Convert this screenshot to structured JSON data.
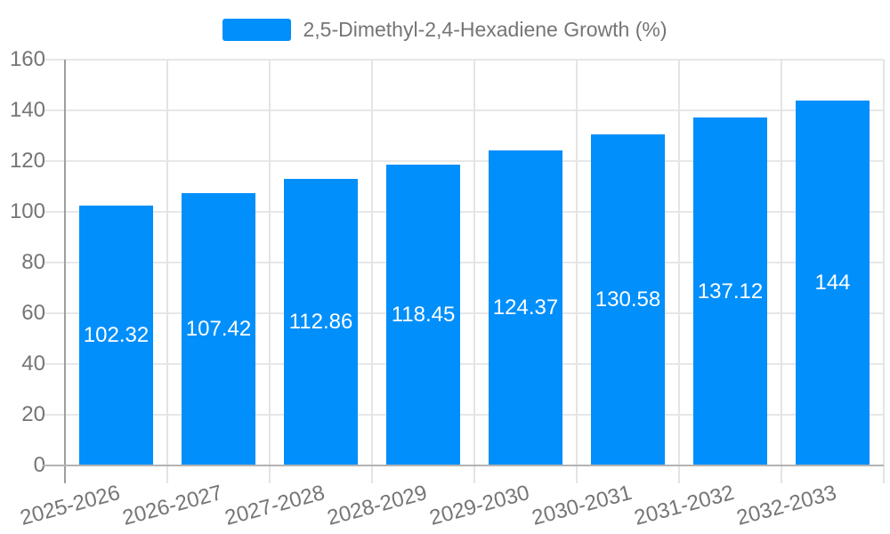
{
  "legend": {
    "label": "2,5-Dimethyl-2,4-Hexadiene Growth (%)"
  },
  "chart_data": {
    "type": "bar",
    "title": "",
    "series_name": "2,5-Dimethyl-2,4-Hexadiene Growth (%)",
    "categories": [
      "2025-2026",
      "2026-2027",
      "2027-2028",
      "2028-2029",
      "2029-2030",
      "2030-2031",
      "2031-2032",
      "2032-2033"
    ],
    "values": [
      102.32,
      107.42,
      112.86,
      118.45,
      124.37,
      130.58,
      137.12,
      144
    ],
    "data_labels": [
      "102.32",
      "107.42",
      "112.86",
      "118.45",
      "124.37",
      "130.58",
      "137.12",
      "144"
    ],
    "y_ticks": [
      "0",
      "20",
      "40",
      "60",
      "80",
      "100",
      "120",
      "140",
      "160"
    ],
    "ylim": [
      0,
      160
    ],
    "y_tick_step": 20,
    "xlabel": "",
    "ylabel": "",
    "grid": "both",
    "legend_position": "top",
    "x_tick_rotation_deg": -15,
    "colors": {
      "bar": "#008FFB",
      "data_label": "#FFFFFF",
      "axis_label": "#757575",
      "h_gridline": "#E7E7E7",
      "v_gridline": "#E4E4E4",
      "x_axis_line": "#B3B3B3",
      "y_axis_line": "#9E9E9E"
    }
  }
}
